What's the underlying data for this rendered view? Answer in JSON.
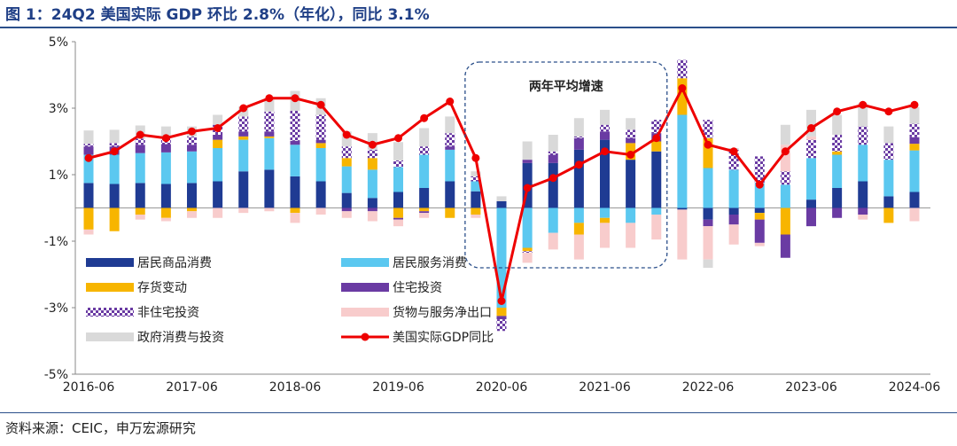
{
  "title": "图 1：24Q2 美国实际 GDP 环比 2.8%（年化），同比 3.1%",
  "source": "资料来源：CEIC，申万宏源研究",
  "chart_data": {
    "type": "bar",
    "stacked": true,
    "ylim": [
      -5,
      5
    ],
    "y_ticks": [
      "5%",
      "3%",
      "1%",
      "-1%",
      "-3%",
      "-5%"
    ],
    "y_tick_values": [
      5,
      3,
      1,
      -1,
      -3,
      -5
    ],
    "x_tick_labels": [
      "2016-06",
      "2017-06",
      "2018-06",
      "2019-06",
      "2020-06",
      "2021-06",
      "2022-06",
      "2023-06",
      "2024-06"
    ],
    "x_tick_index": [
      0,
      4,
      8,
      12,
      16,
      20,
      24,
      28,
      32
    ],
    "quarters": [
      "2016Q2",
      "2016Q3",
      "2016Q4",
      "2017Q1",
      "2017Q2",
      "2017Q3",
      "2017Q4",
      "2018Q1",
      "2018Q2",
      "2018Q3",
      "2018Q4",
      "2019Q1",
      "2019Q2",
      "2019Q3",
      "2019Q4",
      "2020Q1",
      "2020Q2",
      "2020Q3",
      "2020Q4",
      "2021Q1",
      "2021Q2",
      "2021Q3",
      "2021Q4",
      "2022Q1",
      "2022Q2",
      "2022Q3",
      "2022Q4",
      "2023Q1",
      "2023Q2",
      "2023Q3",
      "2023Q4",
      "2024Q1",
      "2024Q2"
    ],
    "annotation": "两年平均增速",
    "annotation_range": [
      "2020Q1",
      "2021Q4"
    ],
    "legend_position": "bottom-left",
    "series": [
      {
        "name": "居民商品消费",
        "color": "#1f3b93",
        "pattern": "solid",
        "values": [
          0.75,
          0.72,
          0.75,
          0.72,
          0.75,
          0.8,
          1.1,
          1.15,
          0.95,
          0.8,
          0.45,
          0.3,
          0.48,
          0.6,
          0.8,
          0.5,
          0.2,
          1.35,
          1.35,
          1.75,
          2.05,
          1.45,
          1.7,
          -0.05,
          -0.35,
          -0.2,
          -0.15,
          0.0,
          0.25,
          0.6,
          0.8,
          0.35,
          0.48
        ]
      },
      {
        "name": "居民服务消费",
        "color": "#5bc8f0",
        "pattern": "solid",
        "values": [
          0.85,
          0.88,
          0.9,
          0.95,
          0.95,
          1.0,
          0.95,
          0.95,
          0.95,
          1.0,
          0.8,
          0.85,
          0.75,
          1.0,
          0.95,
          0.3,
          -3.0,
          -1.2,
          -0.75,
          -0.45,
          -0.3,
          -0.45,
          -0.2,
          2.8,
          1.2,
          1.15,
          0.75,
          0.7,
          1.25,
          1.0,
          1.1,
          1.1,
          1.25
        ]
      },
      {
        "name": "存货变动",
        "color": "#f7b500",
        "pattern": "solid",
        "values": [
          -0.65,
          -0.7,
          -0.2,
          -0.3,
          -0.1,
          0.25,
          0.1,
          0.05,
          -0.15,
          0.15,
          0.25,
          0.35,
          -0.3,
          -0.1,
          -0.3,
          -0.2,
          -0.25,
          -0.1,
          0.0,
          -0.35,
          -0.15,
          0.5,
          0.3,
          1.1,
          0.9,
          0.0,
          -0.2,
          -0.8,
          0.0,
          0.1,
          0.0,
          -0.45,
          0.2
        ]
      },
      {
        "name": "住宅投资",
        "color": "#6a3ba3",
        "pattern": "solid",
        "values": [
          0.25,
          0.25,
          0.25,
          0.25,
          0.2,
          0.15,
          0.15,
          0.15,
          0.12,
          0.1,
          -0.1,
          -0.1,
          -0.05,
          -0.05,
          0.1,
          0.0,
          -0.1,
          0.1,
          0.25,
          0.35,
          0.25,
          0.15,
          0.25,
          0.0,
          -0.2,
          -0.3,
          -0.7,
          -0.7,
          -0.55,
          -0.3,
          -0.2,
          0.0,
          0.2
        ]
      },
      {
        "name": "非住宅投资",
        "color": "#6a3ba3",
        "pattern": "check",
        "values": [
          0.08,
          0.1,
          0.18,
          0.18,
          0.25,
          0.3,
          0.45,
          0.6,
          0.9,
          0.75,
          0.35,
          0.25,
          0.2,
          0.25,
          0.4,
          0.15,
          -0.35,
          -0.05,
          0.1,
          0.05,
          0.2,
          0.25,
          0.4,
          0.55,
          0.55,
          0.6,
          0.8,
          0.4,
          0.55,
          0.5,
          0.55,
          0.5,
          0.4
        ]
      },
      {
        "name": "货物与服务净出口",
        "color": "#f8cccc",
        "pattern": "solid",
        "values": [
          -0.15,
          0.0,
          -0.15,
          -0.1,
          -0.2,
          -0.3,
          -0.15,
          -0.1,
          -0.3,
          -0.2,
          -0.2,
          -0.3,
          -0.2,
          -0.15,
          0.0,
          -0.1,
          0.0,
          -0.3,
          -0.5,
          -0.75,
          -0.75,
          -0.75,
          -0.75,
          -1.5,
          -1.0,
          -0.6,
          -0.1,
          0.8,
          0.1,
          0.0,
          -0.15,
          0.0,
          -0.4
        ]
      },
      {
        "name": "政府消费与投资",
        "color": "#d9d9d9",
        "pattern": "solid",
        "values": [
          0.4,
          0.4,
          0.4,
          0.35,
          0.3,
          0.3,
          0.3,
          0.4,
          0.6,
          0.5,
          0.45,
          0.5,
          0.55,
          0.55,
          0.5,
          0.15,
          0.15,
          0.55,
          0.5,
          0.55,
          0.45,
          0.35,
          0.0,
          0.0,
          -0.25,
          0.05,
          0.0,
          0.6,
          0.8,
          0.6,
          0.7,
          0.5,
          0.5
        ]
      }
    ],
    "line": {
      "name": "美国实际GDP同比",
      "color": "#ee0000",
      "values": [
        1.5,
        1.7,
        2.2,
        2.1,
        2.3,
        2.4,
        3.0,
        3.3,
        3.3,
        3.1,
        2.2,
        1.9,
        2.1,
        2.7,
        3.2,
        1.5,
        -2.8,
        0.6,
        0.9,
        1.3,
        1.7,
        1.6,
        2.1,
        3.6,
        1.9,
        1.7,
        0.7,
        1.7,
        2.4,
        2.9,
        3.1,
        2.9,
        3.1
      ]
    }
  }
}
